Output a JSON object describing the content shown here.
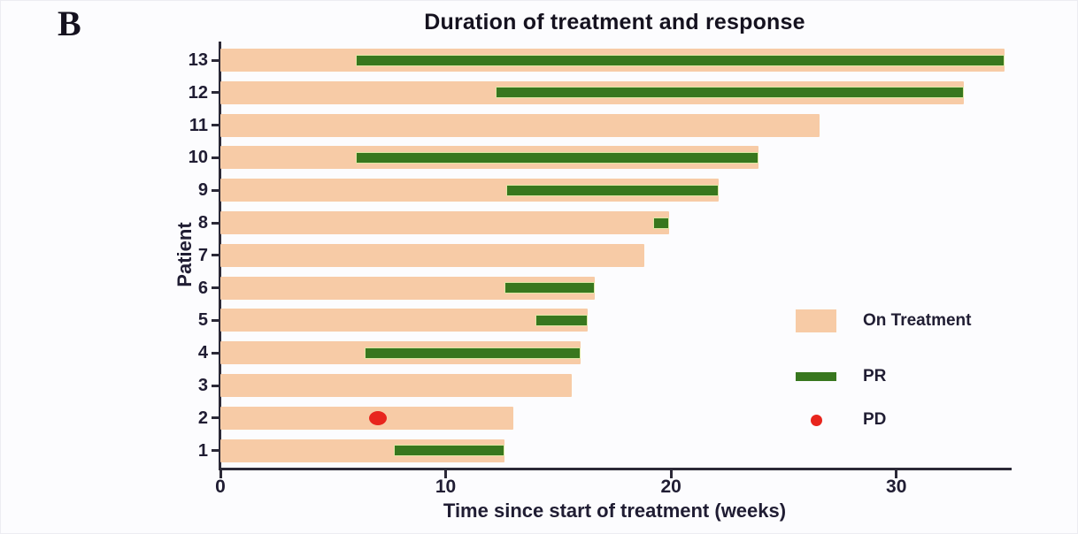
{
  "panel_label": "B",
  "chart_data": {
    "type": "bar",
    "subtype": "swimmer-plot",
    "title": "Duration of treatment and response",
    "xlabel": "Time since start of treatment (weeks)",
    "ylabel": "Patient",
    "xlim": [
      0,
      35
    ],
    "xticks": [
      "0",
      "10",
      "20",
      "30"
    ],
    "xtick_values": [
      0,
      10,
      20,
      30
    ],
    "grid": false,
    "legend_position": "right-middle",
    "legend": [
      {
        "label": "On Treatment",
        "marker": "square",
        "color": "#f7cba6"
      },
      {
        "label": "PR",
        "marker": "bar",
        "color": "#38771e"
      },
      {
        "label": "PD",
        "marker": "dot",
        "color": "#e8251d"
      }
    ],
    "patients": [
      {
        "id": "13",
        "treatment_weeks": 34.8,
        "pr": [
          6.0,
          34.8
        ],
        "pd_week": null
      },
      {
        "id": "12",
        "treatment_weeks": 33.0,
        "pr": [
          12.2,
          33.0
        ],
        "pd_week": null
      },
      {
        "id": "11",
        "treatment_weeks": 26.6,
        "pr": null,
        "pd_week": null
      },
      {
        "id": "10",
        "treatment_weeks": 23.9,
        "pr": [
          6.0,
          23.9
        ],
        "pd_week": null
      },
      {
        "id": "9",
        "treatment_weeks": 22.1,
        "pr": [
          12.7,
          22.1
        ],
        "pd_week": null
      },
      {
        "id": "8",
        "treatment_weeks": 19.9,
        "pr": [
          19.2,
          19.9
        ],
        "pd_week": null
      },
      {
        "id": "7",
        "treatment_weeks": 18.8,
        "pr": null,
        "pd_week": null
      },
      {
        "id": "6",
        "treatment_weeks": 16.6,
        "pr": [
          12.6,
          16.6
        ],
        "pd_week": null
      },
      {
        "id": "5",
        "treatment_weeks": 16.3,
        "pr": [
          14.0,
          16.3
        ],
        "pd_week": null
      },
      {
        "id": "4",
        "treatment_weeks": 16.0,
        "pr": [
          6.4,
          16.0
        ],
        "pd_week": null
      },
      {
        "id": "3",
        "treatment_weeks": 15.6,
        "pr": null,
        "pd_week": null
      },
      {
        "id": "2",
        "treatment_weeks": 13.0,
        "pr": null,
        "pd_week": 7.0
      },
      {
        "id": "1",
        "treatment_weeks": 12.6,
        "pr": [
          7.7,
          12.6
        ],
        "pd_week": null
      }
    ],
    "colors": {
      "on_treatment": "#f7cba6",
      "pr": "#38771e",
      "pd": "#e8251d",
      "axis": "#2b2937",
      "text": "#201d33"
    }
  }
}
